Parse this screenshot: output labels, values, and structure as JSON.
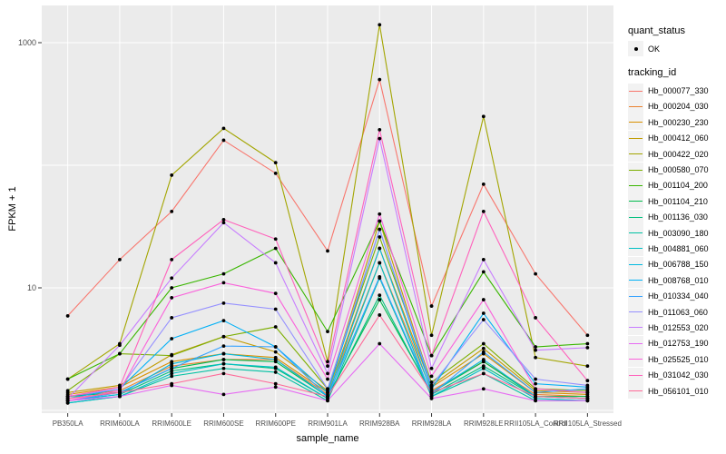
{
  "figure": {
    "background": "#FFFFFF",
    "panel_background": "#EBEBEB",
    "gridline_color": "#FFFFFF",
    "tick_color": "#333333",
    "tick_label_color": "#4D4D4D",
    "point_color": "#000000"
  },
  "axes": {
    "y_title": "FPKM + 1",
    "x_title": "sample_name"
  },
  "legend": {
    "quant_title": "quant_status",
    "quant_items": [
      {
        "label": "OK",
        "marker": "point",
        "color": "#000000"
      }
    ],
    "tracking_title": "tracking_id",
    "key_background": "#F2F2F2"
  },
  "chart_data": {
    "type": "line",
    "title": "",
    "xlabel": "sample_name",
    "ylabel": "FPKM + 1",
    "y_scale": "log10",
    "ylim": [
      0.95,
      2000
    ],
    "y_tick_labels": [
      {
        "label": "1000",
        "value": 1000
      },
      {
        "label": "10",
        "value": 10
      }
    ],
    "y_grid_values": [
      1,
      10,
      100,
      1000
    ],
    "grid": true,
    "legend_position": "right",
    "marker": "black-point-all-vertices",
    "categories": [
      "PB350LA",
      "RRIM600LA",
      "RRIM600LE",
      "RRIM600SE",
      "RRIM600PE",
      "RRIM901LA",
      "RRIM928BA",
      "RRIM928LA",
      "RRIM928LE",
      "RRII105LA_Control",
      "RRII105LA_Stressed"
    ],
    "series": [
      {
        "name": "Hb_000077_330",
        "color": "#F8766D",
        "values": [
          5.9,
          17,
          42,
          160,
          86,
          20,
          500,
          7.1,
          70,
          13,
          4.1
        ]
      },
      {
        "name": "Hb_000204_030",
        "color": "#EA8331",
        "values": [
          1.3,
          1.45,
          2.3,
          2.6,
          2.6,
          1.35,
          16,
          1.45,
          2.5,
          1.35,
          1.3
        ]
      },
      {
        "name": "Hb_000230_230",
        "color": "#D89000",
        "values": [
          1.35,
          1.55,
          2.5,
          2.9,
          2.7,
          1.4,
          21,
          1.55,
          2.9,
          1.4,
          1.35
        ]
      },
      {
        "name": "Hb_000412_060",
        "color": "#C09B00",
        "values": [
          1.4,
          1.6,
          2.85,
          4.0,
          3.0,
          1.45,
          35,
          1.6,
          3.2,
          1.45,
          1.4
        ]
      },
      {
        "name": "Hb_000422_020",
        "color": "#A3A500",
        "values": [
          1.8,
          3.5,
          83,
          200,
          105,
          2.5,
          1400,
          4.1,
          250,
          2.7,
          2.3
        ]
      },
      {
        "name": "Hb_000580_070",
        "color": "#7CAE00",
        "values": [
          1.45,
          2.9,
          2.8,
          4.0,
          4.8,
          1.5,
          26,
          1.7,
          3.5,
          1.5,
          1.45
        ]
      },
      {
        "name": "Hb_001104_200",
        "color": "#39B600",
        "values": [
          1.8,
          2.9,
          10,
          13,
          21,
          4.4,
          35,
          2.8,
          13.5,
          3.3,
          3.5
        ]
      },
      {
        "name": "Hb_001104_210",
        "color": "#00BB4E",
        "values": [
          1.3,
          1.4,
          2.2,
          2.6,
          2.5,
          1.3,
          8,
          1.4,
          2.5,
          1.3,
          1.3
        ]
      },
      {
        "name": "Hb_001136_030",
        "color": "#00BF7D",
        "values": [
          1.2,
          1.35,
          2.1,
          2.4,
          2.2,
          1.25,
          8.7,
          1.35,
          2.3,
          1.3,
          1.25
        ]
      },
      {
        "name": "Hb_003090_180",
        "color": "#00C1A3",
        "values": [
          1.15,
          1.3,
          1.9,
          2.2,
          2.05,
          1.2,
          12,
          1.3,
          2.0,
          1.2,
          1.2
        ]
      },
      {
        "name": "Hb_004881_060",
        "color": "#00BFC4",
        "values": [
          1.15,
          1.3,
          2.0,
          2.4,
          2.25,
          1.25,
          16,
          1.3,
          2.2,
          1.25,
          1.2
        ]
      },
      {
        "name": "Hb_006788_150",
        "color": "#00BAE0",
        "values": [
          1.2,
          1.35,
          2.4,
          2.9,
          2.6,
          1.3,
          21,
          1.4,
          2.6,
          1.3,
          1.25
        ]
      },
      {
        "name": "Hb_008768_010",
        "color": "#00B0F6",
        "values": [
          1.25,
          1.5,
          3.85,
          5.4,
          3.3,
          1.4,
          30,
          1.5,
          6.2,
          1.65,
          1.55
        ]
      },
      {
        "name": "Hb_010334_040",
        "color": "#35A2FF",
        "values": [
          1.2,
          1.4,
          2.2,
          3.35,
          3.3,
          1.3,
          12.3,
          1.35,
          3.0,
          1.4,
          1.5
        ]
      },
      {
        "name": "Hb_011063_060",
        "color": "#9590FF",
        "values": [
          1.3,
          1.5,
          5.7,
          7.5,
          6.7,
          1.5,
          30,
          1.6,
          5.5,
          1.8,
          1.6
        ]
      },
      {
        "name": "Hb_012553_020",
        "color": "#C77CFF",
        "values": [
          1.25,
          3.4,
          12,
          34,
          16,
          2.0,
          165,
          2.2,
          17,
          3.1,
          3.25
        ]
      },
      {
        "name": "Hb_012753_190",
        "color": "#E76BF3",
        "values": [
          1.2,
          1.3,
          1.6,
          1.35,
          1.55,
          1.2,
          3.5,
          1.25,
          1.5,
          1.2,
          1.2
        ]
      },
      {
        "name": "Hb_025525_010",
        "color": "#FA62DB",
        "values": [
          1.2,
          1.45,
          8.3,
          11,
          9,
          1.8,
          40,
          1.9,
          8,
          1.5,
          1.4
        ]
      },
      {
        "name": "Hb_031042_030",
        "color": "#FF62BC",
        "values": [
          1.3,
          1.55,
          17,
          36,
          25,
          2.3,
          195,
          2.8,
          42,
          5.7,
          1.75
        ]
      },
      {
        "name": "Hb_056101_010",
        "color": "#FF6A98",
        "values": [
          1.25,
          1.4,
          1.65,
          2.0,
          1.65,
          1.3,
          6,
          1.4,
          2.0,
          1.3,
          1.25
        ]
      }
    ]
  }
}
